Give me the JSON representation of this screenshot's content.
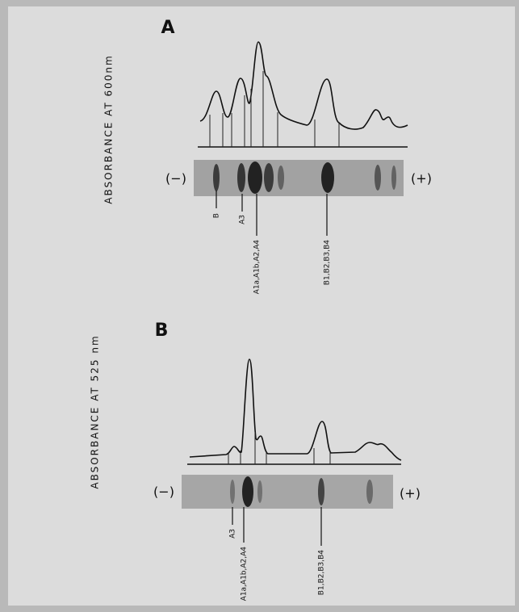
{
  "panels": [
    {
      "label": "A",
      "y_axis_label": "ABSORBANCE AT 600nm",
      "negative": "(−)",
      "positive": "(+)",
      "bands": [
        "B",
        "A3",
        "A1a,A1b,A2,A4",
        "B1,B2,B3,B4"
      ]
    },
    {
      "label": "B",
      "y_axis_label": "ABSORBANCE AT 525 nm",
      "negative": "(−)",
      "positive": "(+)",
      "bands": [
        "A3",
        "A1a,A1b,A2,A4",
        "B1,B2,B3,B4"
      ]
    }
  ]
}
